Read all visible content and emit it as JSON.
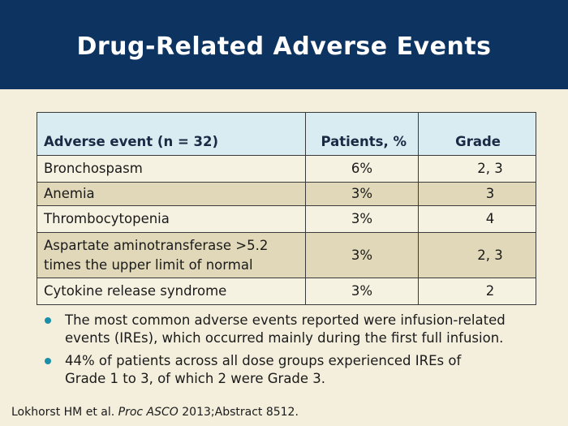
{
  "slide": {
    "title": "Drug-Related Adverse Events"
  },
  "table": {
    "headers": [
      "Adverse event (n = 32)",
      "Patients, %",
      "Grade"
    ],
    "rows": [
      {
        "event": "Bronchospasm",
        "patients": "6%",
        "grade": "2, 3"
      },
      {
        "event": "Anemia",
        "patients": "3%",
        "grade": "3"
      },
      {
        "event": "Thrombocytopenia",
        "patients": "3%",
        "grade": "4"
      },
      {
        "event_line1": "Aspartate aminotransferase >5.2",
        "event_line2": "times the upper limit of normal",
        "patients": "3%",
        "grade": "2, 3"
      },
      {
        "event": "Cytokine release syndrome",
        "patients": "3%",
        "grade": "2"
      }
    ]
  },
  "bullets": [
    {
      "line1": "The most common adverse events reported were infusion-related",
      "line2": "events (IREs), which occurred mainly during the first full infusion."
    },
    {
      "line1": "44% of patients across all dose groups experienced IREs of",
      "line2": "Grade 1 to 3, of which 2 were Grade 3."
    }
  ],
  "citation": {
    "authors": "Lokhorst HM et al.",
    "journal": "Proc ASCO",
    "details": "2013;Abstract 8512."
  },
  "colors": {
    "title_bar": "#0d3361",
    "background": "#f4efdc",
    "header_row": "#d8ecf2",
    "row_alt": "#e0d8b8",
    "bullet": "#1a8fa8"
  }
}
